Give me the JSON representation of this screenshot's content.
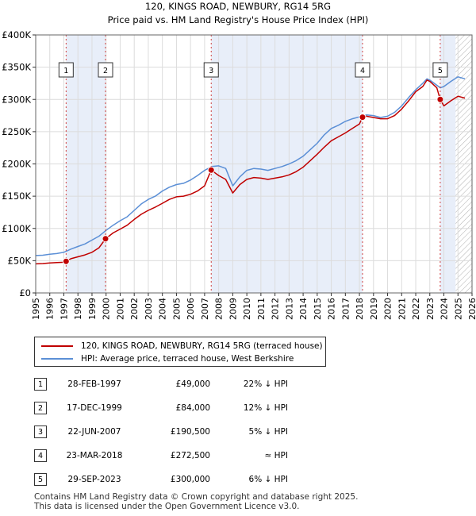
{
  "chart_data": {
    "type": "line",
    "title": "120, KINGS ROAD, NEWBURY, RG14 5RG",
    "subtitle": "Price paid vs. HM Land Registry's House Price Index (HPI)",
    "x_range": [
      1995,
      2026
    ],
    "ylim": [
      0,
      400000
    ],
    "x_ticks": [
      "1995",
      "1996",
      "1997",
      "1998",
      "1999",
      "2000",
      "2001",
      "2002",
      "2003",
      "2004",
      "2005",
      "2006",
      "2007",
      "2008",
      "2009",
      "2010",
      "2011",
      "2012",
      "2013",
      "2014",
      "2015",
      "2016",
      "2017",
      "2018",
      "2019",
      "2020",
      "2021",
      "2022",
      "2023",
      "2024",
      "2025",
      "2026"
    ],
    "y_ticks": [
      {
        "value": 0,
        "label": "£0"
      },
      {
        "value": 50000,
        "label": "£50K"
      },
      {
        "value": 100000,
        "label": "£100K"
      },
      {
        "value": 150000,
        "label": "£150K"
      },
      {
        "value": 200000,
        "label": "£200K"
      },
      {
        "value": 250000,
        "label": "£250K"
      },
      {
        "value": 300000,
        "label": "£300K"
      },
      {
        "value": 350000,
        "label": "£350K"
      },
      {
        "value": 400000,
        "label": "£400K"
      }
    ],
    "grid": true,
    "shaded_periods": [
      [
        1997.16,
        1999.96
      ],
      [
        2007.47,
        2018.22
      ],
      [
        2023.74,
        2024.83
      ]
    ],
    "hatched_period": [
      2024.83,
      2026
    ],
    "series": [
      {
        "name": "HPI: Average price, terraced house, West Berkshire",
        "color": "#5b8fd6",
        "x": [
          1995.0,
          1995.5,
          1996.0,
          1996.5,
          1997.0,
          1997.5,
          1998.0,
          1998.5,
          1999.0,
          1999.5,
          2000.0,
          2000.5,
          2001.0,
          2001.5,
          2002.0,
          2002.5,
          2003.0,
          2003.5,
          2004.0,
          2004.5,
          2005.0,
          2005.5,
          2006.0,
          2006.5,
          2007.0,
          2007.5,
          2008.0,
          2008.5,
          2009.0,
          2009.5,
          2010.0,
          2010.5,
          2011.0,
          2011.5,
          2012.0,
          2012.5,
          2013.0,
          2013.5,
          2014.0,
          2014.5,
          2015.0,
          2015.5,
          2016.0,
          2016.5,
          2017.0,
          2017.5,
          2018.0,
          2018.5,
          2019.0,
          2019.5,
          2020.0,
          2020.5,
          2021.0,
          2021.5,
          2022.0,
          2022.5,
          2022.8,
          2023.0,
          2023.5,
          2023.75,
          2024.0,
          2024.5,
          2025.0,
          2025.5
        ],
        "values": [
          58000,
          58500,
          60000,
          61000,
          63000,
          68000,
          72000,
          76000,
          82000,
          88000,
          97000,
          105000,
          112000,
          118000,
          128000,
          138000,
          145000,
          150000,
          158000,
          164000,
          168000,
          170000,
          175000,
          182000,
          190000,
          196000,
          197000,
          193000,
          166000,
          180000,
          190000,
          193000,
          192000,
          190000,
          193000,
          196000,
          200000,
          205000,
          212000,
          222000,
          232000,
          245000,
          255000,
          260000,
          266000,
          270000,
          273000,
          276000,
          275000,
          272000,
          274000,
          280000,
          290000,
          303000,
          315000,
          325000,
          332000,
          330000,
          322000,
          318000,
          320000,
          328000,
          335000,
          332000
        ]
      },
      {
        "name": "120, KINGS ROAD, NEWBURY, RG14 5RG (terraced house)",
        "color": "#c00000",
        "x": [
          1995.0,
          1995.5,
          1996.0,
          1996.5,
          1997.0,
          1997.16,
          1997.5,
          1998.0,
          1998.5,
          1999.0,
          1999.5,
          1999.96,
          2000.5,
          2001.0,
          2001.5,
          2002.0,
          2002.5,
          2003.0,
          2003.5,
          2004.0,
          2004.5,
          2005.0,
          2005.5,
          2006.0,
          2006.5,
          2007.0,
          2007.47,
          2008.0,
          2008.5,
          2009.0,
          2009.5,
          2010.0,
          2010.5,
          2011.0,
          2011.5,
          2012.0,
          2012.5,
          2013.0,
          2013.5,
          2014.0,
          2014.5,
          2015.0,
          2015.5,
          2016.0,
          2016.5,
          2017.0,
          2017.5,
          2018.0,
          2018.22,
          2018.5,
          2019.0,
          2019.5,
          2020.0,
          2020.5,
          2021.0,
          2021.5,
          2022.0,
          2022.5,
          2022.8,
          2023.0,
          2023.5,
          2023.74,
          2024.0,
          2024.5,
          2025.0,
          2025.5
        ],
        "values": [
          45000,
          45500,
          46500,
          47000,
          47500,
          49000,
          53000,
          56000,
          59000,
          63000,
          70000,
          84000,
          93000,
          99000,
          105000,
          114000,
          122000,
          128000,
          133000,
          139000,
          145000,
          149000,
          150000,
          153000,
          158000,
          166000,
          190500,
          182000,
          176000,
          155000,
          168000,
          176000,
          179000,
          178000,
          176000,
          178000,
          180000,
          183000,
          188000,
          195000,
          205000,
          215000,
          226000,
          236000,
          242000,
          248000,
          255000,
          262000,
          272500,
          274000,
          272000,
          270000,
          270000,
          275000,
          285000,
          298000,
          312000,
          320000,
          330000,
          328000,
          318000,
          300000,
          290000,
          298000,
          305000,
          302000
        ]
      }
    ],
    "sale_markers": [
      {
        "label": "1",
        "x": 1997.16,
        "value": 49000
      },
      {
        "label": "2",
        "x": 1999.96,
        "value": 84000
      },
      {
        "label": "3",
        "x": 2007.47,
        "value": 190500
      },
      {
        "label": "4",
        "x": 2018.22,
        "value": 272500
      },
      {
        "label": "5",
        "x": 2023.74,
        "value": 300000
      }
    ]
  },
  "legend": {
    "property_label": "120, KINGS ROAD, NEWBURY, RG14 5RG (terraced house)",
    "property_color": "#c00000",
    "hpi_label": "HPI: Average price, terraced house, West Berkshire",
    "hpi_color": "#5b8fd6"
  },
  "sales": [
    {
      "num": "1",
      "date": "28-FEB-1997",
      "price": "£49,000",
      "hpi": "22% ↓ HPI"
    },
    {
      "num": "2",
      "date": "17-DEC-1999",
      "price": "£84,000",
      "hpi": "12% ↓ HPI"
    },
    {
      "num": "3",
      "date": "22-JUN-2007",
      "price": "£190,500",
      "hpi": "5% ↓ HPI"
    },
    {
      "num": "4",
      "date": "23-MAR-2018",
      "price": "£272,500",
      "hpi": "≈ HPI"
    },
    {
      "num": "5",
      "date": "29-SEP-2023",
      "price": "£300,000",
      "hpi": "6% ↓ HPI"
    }
  ],
  "footer": {
    "line1": "Contains HM Land Registry data © Crown copyright and database right 2025.",
    "line2": "This data is licensed under the Open Government Licence v3.0."
  }
}
